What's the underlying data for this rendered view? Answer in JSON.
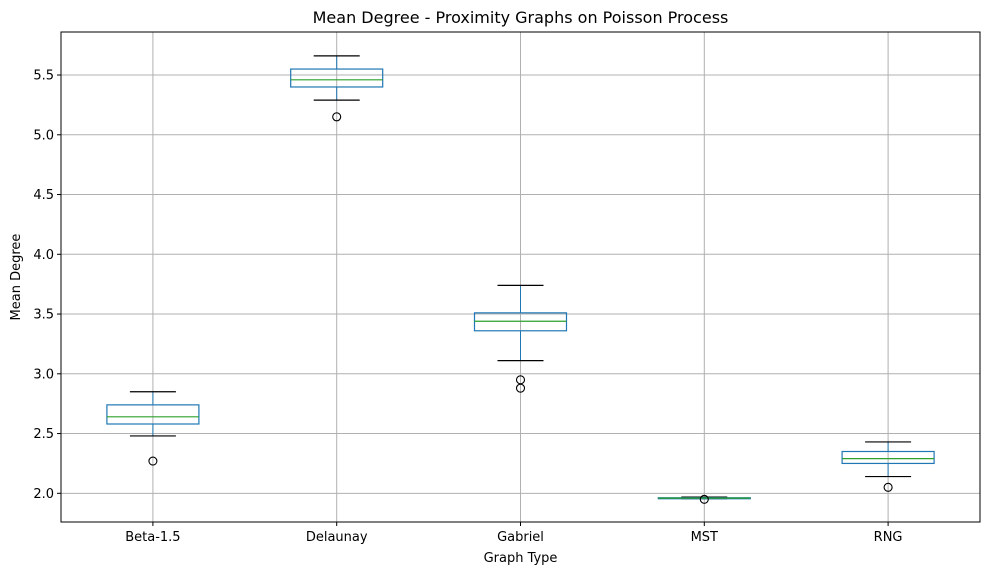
{
  "chart_data": {
    "type": "box",
    "title": "Mean Degree - Proximity Graphs on Poisson Process",
    "xlabel": "Graph Type",
    "ylabel": "Mean Degree",
    "ylim": [
      1.76,
      5.86
    ],
    "yticks": [
      "2.0",
      "2.5",
      "3.0",
      "3.5",
      "4.0",
      "4.5",
      "5.0",
      "5.5"
    ],
    "grid": true,
    "colors": {
      "box": "#1f77b4",
      "median": "#2ca02c",
      "whisker_cap": "#000000",
      "grid": "#b0b0b0",
      "outlier": "#000000"
    },
    "categories": [
      "Beta-1.5",
      "Delaunay",
      "Gabriel",
      "MST",
      "RNG"
    ],
    "boxes": [
      {
        "name": "Beta-1.5",
        "whislo": 2.48,
        "q1": 2.58,
        "med": 2.64,
        "q3": 2.74,
        "whishi": 2.85,
        "fliers": [
          2.27
        ]
      },
      {
        "name": "Delaunay",
        "whislo": 5.29,
        "q1": 5.4,
        "med": 5.46,
        "q3": 5.55,
        "whishi": 5.66,
        "fliers": [
          5.15
        ]
      },
      {
        "name": "Gabriel",
        "whislo": 3.11,
        "q1": 3.36,
        "med": 3.44,
        "q3": 3.51,
        "whishi": 3.74,
        "fliers": [
          2.95,
          2.88
        ]
      },
      {
        "name": "MST",
        "whislo": 1.955,
        "q1": 1.957,
        "med": 1.96,
        "q3": 1.963,
        "whishi": 1.968,
        "fliers": [
          1.95
        ]
      },
      {
        "name": "RNG",
        "whislo": 2.14,
        "q1": 2.25,
        "med": 2.29,
        "q3": 2.35,
        "whishi": 2.43,
        "fliers": [
          2.05
        ]
      }
    ]
  }
}
